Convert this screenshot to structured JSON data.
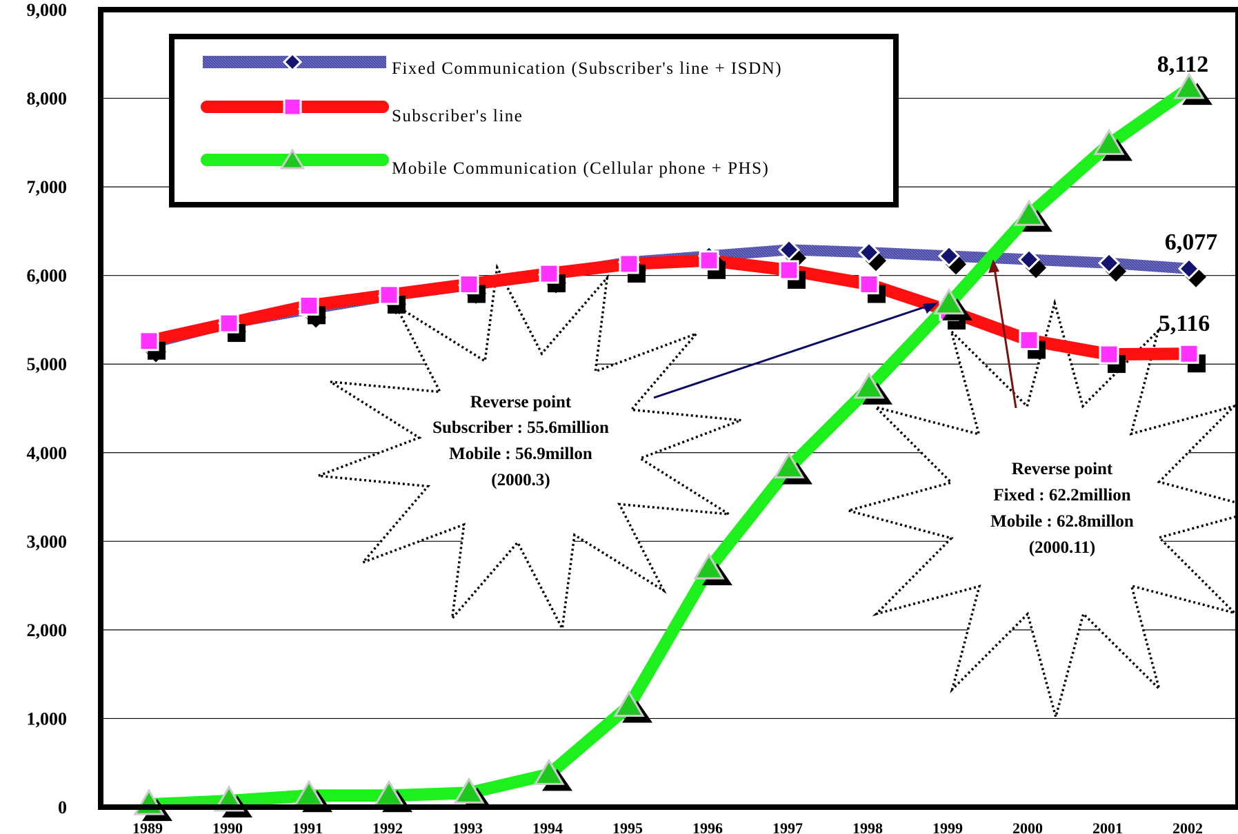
{
  "chart_data": {
    "type": "line",
    "categories": [
      "1989",
      "1990",
      "1991",
      "1992",
      "1993",
      "1994",
      "1995",
      "1996",
      "1997",
      "1998",
      "1999",
      "2000",
      "2001",
      "2002"
    ],
    "ylim": [
      0,
      9000
    ],
    "yticks": [
      "0",
      "1,000",
      "2,000",
      "3,000",
      "4,000",
      "5,000",
      "6,000",
      "7,000",
      "8,000",
      "9,000"
    ],
    "grid": true,
    "legend_position": "top-left",
    "series": [
      {
        "name": "Fixed Communication (Subscriber's line + ISDN)",
        "color": "#4b4ba8",
        "marker": "diamond",
        "marker_color": "#14146e",
        "values": [
          5230,
          5460,
          5620,
          5770,
          5890,
          6010,
          6150,
          6220,
          6290,
          6260,
          6220,
          6180,
          6140,
          6077
        ]
      },
      {
        "name": "Subscriber's line",
        "color": "#ff1010",
        "marker": "square",
        "marker_color": "#ff33ff",
        "values": [
          5260,
          5460,
          5660,
          5780,
          5900,
          6020,
          6130,
          6170,
          6060,
          5900,
          5600,
          5270,
          5110,
          5116
        ]
      },
      {
        "name": "Mobile Communication (Cellular phone + PHS)",
        "color": "#1ef01e",
        "marker": "triangle",
        "marker_color": "#1ec81e",
        "values": [
          30,
          70,
          130,
          130,
          160,
          370,
          1140,
          2690,
          3830,
          4730,
          5680,
          6680,
          7480,
          8112
        ]
      }
    ],
    "end_labels": [
      "8,112",
      "6,077",
      "5,116"
    ],
    "annotations": [
      {
        "title": "Reverse point",
        "line1": "Subscriber : 55.6million",
        "line2": "Mobile : 56.9millon",
        "line3": "(2000.3)"
      },
      {
        "title": "Reverse point",
        "line1": "Fixed : 62.2million",
        "line2": "Mobile : 62.8millon",
        "line3": "(2000.11)"
      }
    ]
  }
}
